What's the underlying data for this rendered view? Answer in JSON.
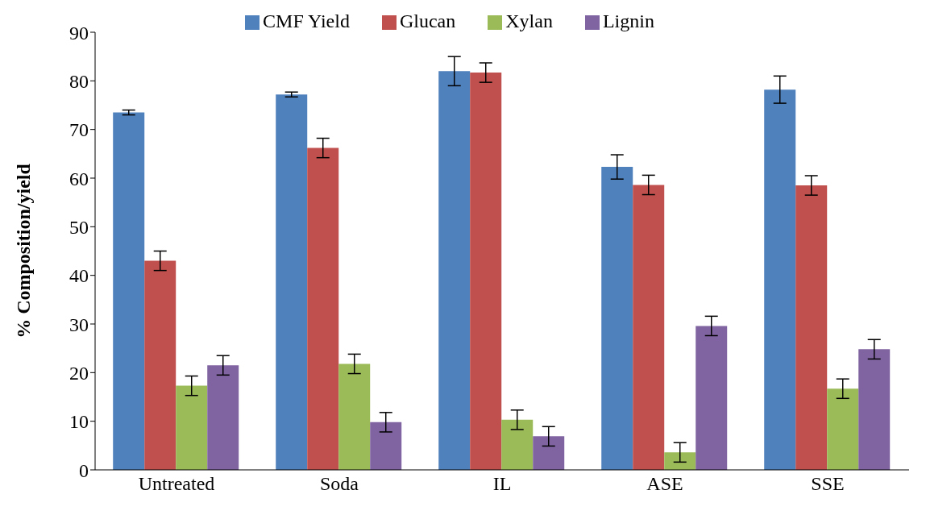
{
  "chart_data": {
    "type": "bar",
    "ylabel": "% Composition/yield",
    "categories": [
      "Untreated",
      "Soda",
      "IL",
      "ASE",
      "SSE"
    ],
    "series": [
      {
        "name": "CMF Yield",
        "color": "#4f81bd",
        "values": [
          73.5,
          77.2,
          82,
          62.3,
          78.2
        ],
        "errors": [
          0.5,
          0.5,
          3,
          2.5,
          2.8
        ]
      },
      {
        "name": "Glucan",
        "color": "#c0504d",
        "values": [
          43,
          66.2,
          81.7,
          58.6,
          58.5
        ],
        "errors": [
          2,
          2,
          2,
          2,
          2
        ]
      },
      {
        "name": "Xylan",
        "color": "#9bbb59",
        "values": [
          17.3,
          21.8,
          10.3,
          3.6,
          16.7
        ],
        "errors": [
          2,
          2,
          2,
          2,
          2
        ]
      },
      {
        "name": "Lignin",
        "color": "#8064a2",
        "values": [
          21.5,
          9.8,
          6.9,
          29.6,
          24.8
        ],
        "errors": [
          2,
          2,
          2,
          2,
          2
        ]
      }
    ],
    "ylim": [
      0,
      90
    ],
    "yticks": [
      0,
      10,
      20,
      30,
      40,
      50,
      60,
      70,
      80,
      90
    ],
    "grid": false,
    "legend": "top"
  }
}
